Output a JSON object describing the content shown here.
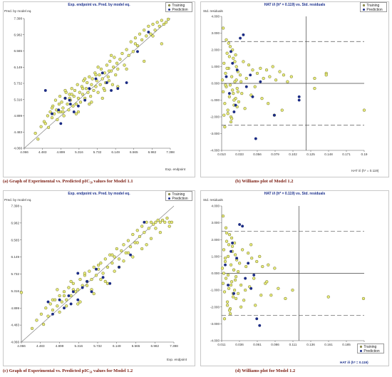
{
  "chart_data": [
    {
      "type": "scatter",
      "title": "Exp. endpoint vs. Pred. by model eq.",
      "ylabel": "Pred. by model eq.",
      "xlabel": "Exp. endpoint",
      "caption": "(a) Graph of Experimental vs. Predicted pIC₅₀ values for Model 1.1",
      "xticks": [
        "4.066",
        "4.483",
        "4.899",
        "5.316",
        "5.732",
        "6.149",
        "6.565",
        "6.982",
        "7.398"
      ],
      "yticks": [
        "4.066",
        "4.483",
        "4.899",
        "5.316",
        "5.732",
        "6.149",
        "6.565",
        "6.982",
        "7.398"
      ],
      "xlim": [
        4.066,
        7.398
      ],
      "ylim": [
        4.066,
        7.398
      ],
      "reference_line": "y = x",
      "legend": [
        "Training",
        "Prediction"
      ],
      "legend_position": "top-right",
      "series": [
        {
          "name": "Training",
          "color": "#e8ec7a",
          "x": [
            4.32,
            4.38,
            4.45,
            4.52,
            4.55,
            4.6,
            4.62,
            4.66,
            4.7,
            4.72,
            4.75,
            4.78,
            4.8,
            4.82,
            4.86,
            4.88,
            4.9,
            4.92,
            4.95,
            4.97,
            5.0,
            5.02,
            5.05,
            5.08,
            5.1,
            5.12,
            5.15,
            5.18,
            5.2,
            5.22,
            5.25,
            5.28,
            5.3,
            5.33,
            5.35,
            5.38,
            5.4,
            5.42,
            5.45,
            5.48,
            5.5,
            5.52,
            5.55,
            5.58,
            5.6,
            5.62,
            5.65,
            5.68,
            5.7,
            5.72,
            5.75,
            5.78,
            5.8,
            5.82,
            5.85,
            5.88,
            5.9,
            5.92,
            5.95,
            5.98,
            6.0,
            6.02,
            6.05,
            6.08,
            6.1,
            6.12,
            6.15,
            6.18,
            6.2,
            6.25,
            6.3,
            6.35,
            6.4,
            6.45,
            6.5,
            6.55,
            6.6,
            6.65,
            6.7,
            6.75,
            6.8,
            6.85,
            6.9,
            6.95,
            7.0,
            7.05,
            7.1,
            7.15,
            7.2,
            7.25,
            7.3,
            7.35,
            4.7,
            4.85,
            5.0,
            5.15,
            5.3,
            5.45,
            5.6,
            5.75,
            5.9,
            6.05,
            6.2,
            6.4,
            6.6,
            6.8,
            7.0,
            7.2,
            4.95,
            5.1,
            5.25,
            5.4,
            5.55,
            5.7,
            5.85,
            6.0
          ],
          "y": [
            4.45,
            4.3,
            4.62,
            4.75,
            4.7,
            4.9,
            4.6,
            5.0,
            4.85,
            5.15,
            4.95,
            5.3,
            5.05,
            4.8,
            5.2,
            5.4,
            5.0,
            5.25,
            5.1,
            4.9,
            5.35,
            5.5,
            5.2,
            5.05,
            5.45,
            5.3,
            5.6,
            5.15,
            5.4,
            5.55,
            5.2,
            5.7,
            5.35,
            5.5,
            5.25,
            5.65,
            5.45,
            5.8,
            5.35,
            5.6,
            5.75,
            5.5,
            5.9,
            5.4,
            5.7,
            5.85,
            5.55,
            6.0,
            5.65,
            5.8,
            5.5,
            5.95,
            5.7,
            6.1,
            5.85,
            5.6,
            6.0,
            5.75,
            6.2,
            5.9,
            5.8,
            6.3,
            6.05,
            5.7,
            6.15,
            6.4,
            5.95,
            6.25,
            6.1,
            6.35,
            6.5,
            6.2,
            6.6,
            6.45,
            6.8,
            6.55,
            6.9,
            6.7,
            7.0,
            6.85,
            7.1,
            6.95,
            7.2,
            7.0,
            7.25,
            7.1,
            7.3,
            7.2,
            7.35,
            7.25,
            7.3,
            7.38,
            5.1,
            5.0,
            5.55,
            5.45,
            5.0,
            5.85,
            5.25,
            6.15,
            5.55,
            6.45,
            5.65,
            6.1,
            6.75,
            6.3,
            6.95,
            6.75,
            5.0,
            5.35,
            4.95,
            5.6,
            5.2,
            5.95,
            5.35,
            6.05
          ]
        },
        {
          "name": "Prediction",
          "color": "#1a2c8c",
          "x": [
            4.55,
            4.7,
            4.9,
            5.0,
            5.12,
            5.2,
            5.3,
            5.45,
            5.55,
            5.7,
            5.85,
            5.95,
            6.05,
            6.2,
            6.4,
            6.65,
            6.9,
            5.1,
            4.85
          ],
          "y": [
            5.55,
            4.95,
            4.7,
            5.35,
            5.2,
            5.0,
            5.15,
            5.3,
            5.6,
            5.85,
            6.0,
            5.75,
            5.55,
            5.6,
            5.75,
            6.55,
            7.05,
            5.3,
            5.05
          ]
        }
      ]
    },
    {
      "type": "scatter",
      "title": "HAT i/i (h* = 0.119) vs. Std. residuals",
      "ylabel": "Std. residuals",
      "xlabel": "HAT i/i (h* = 0.119)",
      "caption": "(b) Williams plot of Model 1.2",
      "xticks": [
        "0.010",
        "0.033",
        "0.056",
        "0.079",
        "0.102",
        "0.125",
        "0.148",
        "0.171",
        "0.19"
      ],
      "yticks": [
        "4.000",
        "3.000",
        "2.000",
        "1.000",
        "0.000",
        "-1.000",
        "-2.000",
        "-3.000",
        "-4.000"
      ],
      "xlim": [
        0.01,
        0.194
      ],
      "ylim": [
        -4.0,
        4.0
      ],
      "warning_leverage": 0.119,
      "residual_limits": [
        2.5,
        -2.5
      ],
      "legend": [
        "Training",
        "Prediction"
      ],
      "legend_position": "top-right",
      "series": [
        {
          "name": "Training",
          "color": "#e8ec7a",
          "x": [
            0.011,
            0.012,
            0.013,
            0.014,
            0.015,
            0.016,
            0.017,
            0.018,
            0.019,
            0.02,
            0.021,
            0.022,
            0.023,
            0.024,
            0.025,
            0.026,
            0.027,
            0.028,
            0.029,
            0.03,
            0.031,
            0.032,
            0.034,
            0.036,
            0.038,
            0.04,
            0.042,
            0.045,
            0.048,
            0.05,
            0.053,
            0.056,
            0.06,
            0.064,
            0.068,
            0.072,
            0.076,
            0.08,
            0.085,
            0.09,
            0.095,
            0.1,
            0.13,
            0.13,
            0.145,
            0.145,
            0.194,
            0.012,
            0.014,
            0.016,
            0.018,
            0.02,
            0.022,
            0.024,
            0.026,
            0.028,
            0.03,
            0.015,
            0.019,
            0.023,
            0.027,
            0.031,
            0.035,
            0.013,
            0.017,
            0.021,
            0.025,
            0.029,
            0.062,
            0.07,
            0.078,
            0.088
          ],
          "y": [
            0.2,
            -0.5,
            1.2,
            -1.2,
            0.6,
            -0.2,
            1.8,
            -1.6,
            0.9,
            -0.8,
            2.2,
            -2.0,
            0.4,
            -0.4,
            1.5,
            -1.3,
            0.1,
            -0.9,
            1.0,
            -0.3,
            0.7,
            -1.1,
            0.5,
            -0.6,
            1.3,
            -1.5,
            0.3,
            1.1,
            -0.7,
            0.8,
            -0.2,
            0.6,
            0.9,
            0.3,
            0.8,
            0.4,
            1.0,
            0.2,
            0.7,
            0.5,
            0.1,
            0.4,
            0.3,
            -0.3,
            0.6,
            0.5,
            -1.6,
            3.3,
            -2.6,
            2.6,
            -1.8,
            1.6,
            -2.3,
            2.0,
            -1.0,
            1.7,
            -1.4,
            -0.1,
            2.4,
            -2.1,
            1.3,
            -0.5,
            0.1,
            -1.9,
            0.9,
            -0.1,
            -0.6,
            0.2,
            -0.9,
            -1.2,
            -1.9,
            -1.6
          ]
        },
        {
          "name": "Prediction",
          "color": "#1a2c8c",
          "x": [
            0.016,
            0.02,
            0.024,
            0.028,
            0.03,
            0.034,
            0.038,
            0.042,
            0.047,
            0.05,
            0.054,
            0.06,
            0.078,
            0.11,
            0.11,
            0.026,
            0.022
          ],
          "y": [
            0.4,
            -0.6,
            1.2,
            -1.3,
            0.8,
            2.7,
            2.9,
            -0.2,
            0.5,
            -0.8,
            -3.3,
            0.1,
            -1.9,
            -0.8,
            -1.0,
            -1.7,
            1.9
          ]
        }
      ]
    },
    {
      "type": "scatter",
      "title": "Exp. endpoint vs. Pred. by model eq.",
      "ylabel": "Pred. by model eq.",
      "xlabel": "Exp. endpoint",
      "caption": "(c) Graph of Experimental vs. Predicted pIC₅₀ values for Model 1.2",
      "xticks": [
        "4.066",
        "4.483",
        "4.899",
        "5.316",
        "5.732",
        "6.149",
        "6.565",
        "6.982",
        "7.398"
      ],
      "yticks": [
        "4.066",
        "4.483",
        "4.899",
        "5.316",
        "5.732",
        "6.149",
        "6.565",
        "6.982",
        "7.398"
      ],
      "xlim": [
        4.066,
        7.398
      ],
      "ylim": [
        4.066,
        7.398
      ],
      "reference_line": "y = x",
      "legend": [
        "Training",
        "Prediction"
      ],
      "legend_position": "top-right",
      "series": [
        {
          "name": "Training",
          "color": "#e8ec7a",
          "x": [
            4.3,
            4.4,
            4.5,
            4.55,
            4.6,
            4.65,
            4.7,
            4.75,
            4.8,
            4.85,
            4.9,
            4.95,
            5.0,
            5.05,
            5.1,
            5.15,
            5.2,
            5.25,
            5.3,
            5.35,
            5.4,
            5.45,
            5.5,
            5.55,
            5.6,
            5.65,
            5.7,
            5.75,
            5.8,
            5.85,
            5.9,
            5.95,
            6.0,
            6.05,
            6.1,
            6.15,
            6.2,
            6.25,
            6.3,
            6.35,
            6.4,
            6.45,
            6.5,
            6.55,
            6.6,
            6.65,
            6.7,
            6.75,
            6.8,
            6.85,
            6.9,
            6.95,
            7.0,
            7.05,
            7.1,
            7.15,
            7.2,
            7.25,
            7.3,
            7.35,
            4.75,
            4.9,
            5.05,
            5.2,
            5.35,
            5.5,
            5.65,
            5.8,
            5.95,
            6.1,
            6.3,
            6.5,
            6.7,
            6.9,
            7.1,
            7.3,
            4.85,
            5.0,
            5.15,
            5.3,
            5.45,
            5.6,
            5.75,
            5.9,
            6.05,
            6.2,
            6.4,
            6.6,
            6.8,
            7.0,
            4.066
          ],
          "y": [
            4.4,
            4.6,
            4.75,
            4.5,
            4.9,
            4.7,
            5.0,
            4.85,
            5.1,
            4.95,
            5.2,
            5.05,
            5.3,
            5.1,
            5.4,
            5.2,
            5.5,
            5.3,
            5.35,
            5.6,
            5.45,
            5.7,
            5.55,
            5.8,
            5.6,
            5.9,
            5.7,
            5.85,
            6.0,
            5.75,
            6.1,
            5.9,
            6.2,
            6.0,
            6.15,
            6.35,
            6.1,
            6.3,
            6.45,
            6.25,
            6.55,
            6.4,
            6.7,
            6.5,
            6.8,
            6.65,
            6.9,
            6.75,
            7.0,
            6.85,
            7.0,
            6.95,
            7.0,
            7.05,
            7.0,
            7.05,
            7.0,
            7.1,
            7.0,
            7.0,
            5.1,
            4.8,
            4.95,
            5.35,
            5.05,
            5.45,
            5.25,
            5.6,
            5.5,
            5.8,
            6.05,
            6.15,
            6.35,
            6.6,
            6.75,
            6.9,
            5.35,
            5.2,
            5.55,
            5.0,
            5.75,
            5.35,
            5.95,
            5.55,
            6.2,
            5.9,
            6.25,
            6.5,
            6.45,
            6.85,
            5.28
          ]
        },
        {
          "name": "Prediction",
          "color": "#1a2c8c",
          "x": [
            4.65,
            4.75,
            4.9,
            5.0,
            5.1,
            5.2,
            5.3,
            5.4,
            5.5,
            5.6,
            5.7,
            5.85,
            6.0,
            6.2,
            6.45,
            6.75,
            5.15,
            5.3
          ],
          "y": [
            5.05,
            4.75,
            5.1,
            4.9,
            5.2,
            5.3,
            5.1,
            5.4,
            5.55,
            5.3,
            5.85,
            5.65,
            5.5,
            5.9,
            6.2,
            7.0,
            5.0,
            5.75
          ]
        }
      ]
    },
    {
      "type": "scatter",
      "title": "HAT i/i (h* = 0.119) vs. Std. residuals",
      "ylabel": "Std. residuals",
      "xlabel": "HAT i/i (h* = 0.119)",
      "caption": "(d) Williams plot for Model 1.2",
      "xticks": [
        "0.011",
        "0.036",
        "0.061",
        "0.086",
        "0.111",
        "0.136",
        "0.161",
        "0.185",
        "0.210"
      ],
      "yticks": [
        "4.000",
        "3.000",
        "2.000",
        "1.000",
        "0.000",
        "-1.000",
        "-2.000",
        "-3.000",
        "-4.000"
      ],
      "xlim": [
        0.011,
        0.21
      ],
      "ylim": [
        -4.0,
        4.0
      ],
      "warning_leverage": 0.119,
      "residual_limits": [
        2.5,
        -2.5
      ],
      "legend": [
        "Training",
        "Prediction"
      ],
      "legend_position": "bottom-right",
      "series": [
        {
          "name": "Training",
          "color": "#e8ec7a",
          "x": [
            0.012,
            0.013,
            0.014,
            0.015,
            0.016,
            0.017,
            0.018,
            0.019,
            0.02,
            0.021,
            0.022,
            0.023,
            0.024,
            0.025,
            0.026,
            0.027,
            0.028,
            0.029,
            0.03,
            0.031,
            0.032,
            0.034,
            0.036,
            0.038,
            0.04,
            0.042,
            0.045,
            0.048,
            0.05,
            0.053,
            0.056,
            0.06,
            0.064,
            0.068,
            0.072,
            0.076,
            0.08,
            0.085,
            0.09,
            0.1,
            0.11,
            0.16,
            0.209,
            0.013,
            0.015,
            0.017,
            0.019,
            0.021,
            0.023,
            0.025,
            0.027,
            0.029,
            0.031,
            0.014,
            0.018,
            0.022,
            0.026,
            0.03,
            0.034,
            0.038,
            0.016,
            0.02,
            0.024,
            0.028,
            0.044,
            0.052,
            0.058,
            0.066,
            0.074
          ],
          "y": [
            0.3,
            -0.6,
            1.4,
            -1.1,
            0.7,
            -0.3,
            1.9,
            -1.7,
            1.0,
            -0.9,
            2.3,
            -2.1,
            0.5,
            -0.5,
            1.6,
            -1.4,
            0.2,
            -1.0,
            1.1,
            -0.2,
            0.8,
            -1.2,
            0.6,
            -0.7,
            1.4,
            -1.6,
            0.4,
            1.2,
            -0.8,
            0.9,
            -0.3,
            0.7,
            1.0,
            0.4,
            -0.6,
            0.5,
            -1.3,
            0.3,
            -0.9,
            -1.5,
            -1.0,
            -1.4,
            -1.5,
            3.4,
            -2.7,
            2.7,
            -1.9,
            1.7,
            -2.4,
            2.1,
            -1.2,
            1.8,
            -1.5,
            0.0,
            2.4,
            -2.2,
            1.3,
            -0.4,
            0.1,
            -2.0,
            0.9,
            -0.1,
            -0.7,
            0.2,
            -1.0,
            1.7,
            -1.9,
            -1.3,
            -0.5
          ]
        },
        {
          "name": "Prediction",
          "color": "#1a2c8c",
          "x": [
            0.016,
            0.02,
            0.024,
            0.028,
            0.032,
            0.036,
            0.04,
            0.044,
            0.048,
            0.052,
            0.056,
            0.06,
            0.064,
            0.026
          ],
          "y": [
            0.5,
            -0.7,
            1.3,
            -1.2,
            0.9,
            2.9,
            2.8,
            -0.3,
            0.6,
            -0.9,
            -0.1,
            -2.7,
            -3.1,
            1.8
          ]
        }
      ]
    }
  ]
}
